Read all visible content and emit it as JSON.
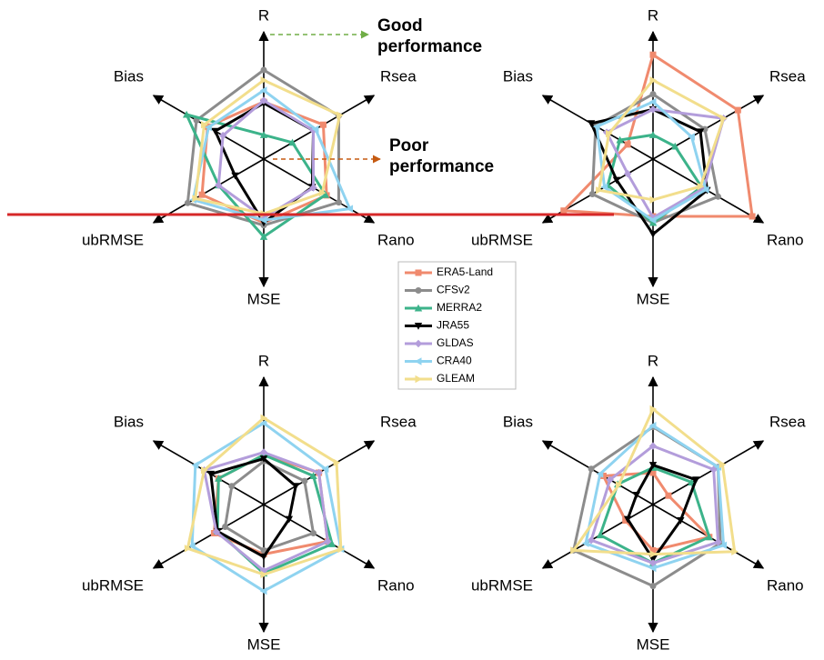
{
  "chart_data": [
    {
      "type": "radar",
      "rlim": [
        0,
        1
      ],
      "axes": [
        "R",
        "Rsea",
        "Rano",
        "MSE",
        "ubRMSE",
        "Bias"
      ],
      "series": [
        {
          "name": "ERA5-Land",
          "color": "#f08a6e",
          "marker": "square",
          "values": [
            0.45,
            0.54,
            0.57,
            0.5,
            0.56,
            0.51
          ]
        },
        {
          "name": "CFSv2",
          "color": "#8c8c8c",
          "marker": "circle",
          "values": [
            0.7,
            0.68,
            0.68,
            0.52,
            0.69,
            0.61
          ]
        },
        {
          "name": "MERRA2",
          "color": "#3cb38a",
          "marker": "triangle-up",
          "values": [
            0.19,
            0.26,
            0.56,
            0.61,
            0.41,
            0.7
          ]
        },
        {
          "name": "JRA55",
          "color": "#000000",
          "marker": "triangle-down",
          "values": [
            0.44,
            0.45,
            0.44,
            0.5,
            0.26,
            0.44
          ]
        },
        {
          "name": "GLDAS",
          "color": "#b39ddb",
          "marker": "diamond",
          "values": [
            0.46,
            0.45,
            0.45,
            0.46,
            0.41,
            0.37
          ]
        },
        {
          "name": "CRA40",
          "color": "#8fd3f0",
          "marker": "triangle-left",
          "values": [
            0.54,
            0.47,
            0.78,
            0.48,
            0.64,
            0.5
          ]
        },
        {
          "name": "GLEAM",
          "color": "#f2de8c",
          "marker": "triangle-right",
          "values": [
            0.62,
            0.69,
            0.53,
            0.43,
            0.62,
            0.54
          ]
        }
      ],
      "annotations": [
        {
          "lines": [
            "Good",
            "performance"
          ],
          "color": "#70ad47"
        },
        {
          "lines": [
            "Poor",
            "performance"
          ],
          "color": "#c55a11"
        }
      ]
    },
    {
      "type": "radar",
      "rlim": [
        0,
        1
      ],
      "axes": [
        "R",
        "Rsea",
        "Rano",
        "MSE",
        "ubRMSE",
        "Bias"
      ],
      "series": [
        {
          "name": "ERA5-Land",
          "color": "#f08a6e",
          "marker": "square",
          "values": [
            0.82,
            0.77,
            0.9,
            0.45,
            0.81,
            0.23
          ]
        },
        {
          "name": "CFSv2",
          "color": "#8c8c8c",
          "marker": "circle",
          "values": [
            0.51,
            0.47,
            0.59,
            0.5,
            0.55,
            0.52
          ]
        },
        {
          "name": "MERRA2",
          "color": "#3cb38a",
          "marker": "triangle-up",
          "values": [
            0.19,
            0.2,
            0.44,
            0.5,
            0.41,
            0.3
          ]
        },
        {
          "name": "JRA55",
          "color": "#000000",
          "marker": "triangle-down",
          "values": [
            0.39,
            0.43,
            0.49,
            0.59,
            0.33,
            0.56
          ]
        },
        {
          "name": "GLDAS",
          "color": "#b39ddb",
          "marker": "diamond",
          "values": [
            0.39,
            0.64,
            0.46,
            0.46,
            0.23,
            0.42
          ]
        },
        {
          "name": "CRA40",
          "color": "#8fd3f0",
          "marker": "triangle-left",
          "values": [
            0.45,
            0.35,
            0.48,
            0.48,
            0.44,
            0.51
          ]
        },
        {
          "name": "GLEAM",
          "color": "#f2de8c",
          "marker": "triangle-right",
          "values": [
            0.62,
            0.64,
            0.43,
            0.32,
            0.49,
            0.4
          ]
        }
      ]
    },
    {
      "type": "radar",
      "rlim": [
        0,
        1
      ],
      "axes": [
        "R",
        "Rsea",
        "Rano",
        "MSE",
        "ubRMSE",
        "Bias"
      ],
      "series": [
        {
          "name": "ERA5-Land",
          "color": "#f08a6e",
          "marker": "square",
          "values": [
            0.39,
            0.5,
            0.58,
            0.39,
            0.45,
            0.41
          ]
        },
        {
          "name": "CFSv2",
          "color": "#8c8c8c",
          "marker": "circle",
          "values": [
            0.34,
            0.37,
            0.45,
            0.36,
            0.35,
            0.29
          ]
        },
        {
          "name": "MERRA2",
          "color": "#3cb38a",
          "marker": "triangle-up",
          "values": [
            0.39,
            0.45,
            0.62,
            0.54,
            0.42,
            0.41
          ]
        },
        {
          "name": "JRA55",
          "color": "#000000",
          "marker": "triangle-down",
          "values": [
            0.36,
            0.29,
            0.23,
            0.41,
            0.42,
            0.48
          ]
        },
        {
          "name": "GLDAS",
          "color": "#b39ddb",
          "marker": "diamond",
          "values": [
            0.41,
            0.5,
            0.58,
            0.52,
            0.43,
            0.54
          ]
        },
        {
          "name": "CRA40",
          "color": "#8fd3f0",
          "marker": "triangle-left",
          "values": [
            0.64,
            0.56,
            0.7,
            0.68,
            0.65,
            0.62
          ]
        },
        {
          "name": "GLEAM",
          "color": "#f2de8c",
          "marker": "triangle-right",
          "values": [
            0.68,
            0.66,
            0.7,
            0.55,
            0.69,
            0.54
          ]
        }
      ]
    },
    {
      "type": "radar",
      "rlim": [
        0,
        1
      ],
      "axes": [
        "R",
        "Rsea",
        "Rano",
        "MSE",
        "ubRMSE",
        "Bias"
      ],
      "series": [
        {
          "name": "ERA5-Land",
          "color": "#f08a6e",
          "marker": "square",
          "values": [
            0.25,
            0.14,
            0.51,
            0.36,
            0.25,
            0.45
          ]
        },
        {
          "name": "CFSv2",
          "color": "#8c8c8c",
          "marker": "circle",
          "values": [
            0.61,
            0.59,
            0.61,
            0.64,
            0.72,
            0.56
          ]
        },
        {
          "name": "MERRA2",
          "color": "#3cb38a",
          "marker": "triangle-up",
          "values": [
            0.29,
            0.35,
            0.51,
            0.46,
            0.48,
            0.32
          ]
        },
        {
          "name": "JRA55",
          "color": "#000000",
          "marker": "triangle-down",
          "values": [
            0.31,
            0.39,
            0.25,
            0.43,
            0.23,
            0.15
          ]
        },
        {
          "name": "GLDAS",
          "color": "#b39ddb",
          "marker": "diamond",
          "values": [
            0.46,
            0.55,
            0.59,
            0.46,
            0.56,
            0.39
          ]
        },
        {
          "name": "CRA40",
          "color": "#8fd3f0",
          "marker": "triangle-left",
          "values": [
            0.62,
            0.59,
            0.64,
            0.5,
            0.61,
            0.48
          ]
        },
        {
          "name": "GLEAM",
          "color": "#f2de8c",
          "marker": "triangle-right",
          "values": [
            0.75,
            0.63,
            0.74,
            0.39,
            0.72,
            0.31
          ]
        }
      ]
    }
  ]
}
